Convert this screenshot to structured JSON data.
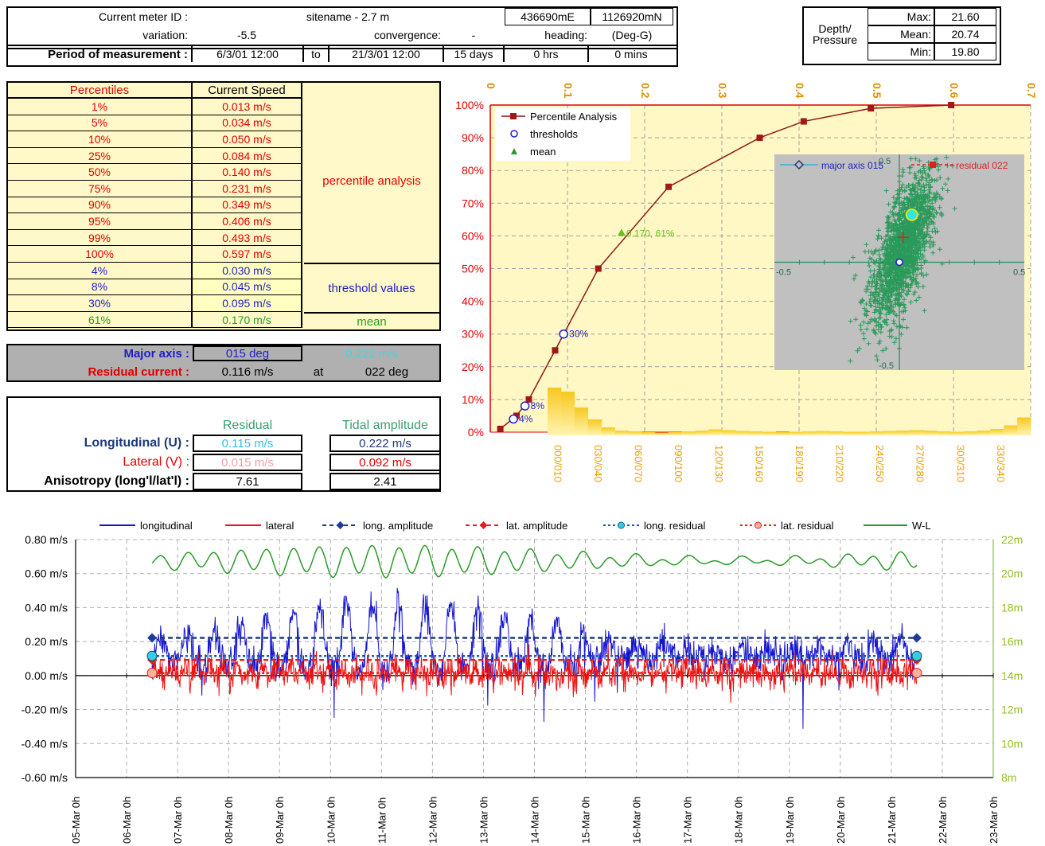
{
  "header": {
    "meter_label": "Current meter ID :",
    "site": "sitename - 2.7 m",
    "easting": "436690mE",
    "northing": "1126920mN",
    "variation_label": "variation:",
    "variation": "-5.5",
    "convergence_label": "convergence:",
    "convergence": "-",
    "heading_label": "heading:",
    "heading": "(Deg-G)",
    "period_label": "Period of measurement :",
    "start": "6/3/01 12:00",
    "to": "to",
    "end": "21/3/01 12:00",
    "days": "15 days",
    "hrs": "0 hrs",
    "mins": "0  mins"
  },
  "depth": {
    "label": "Depth/ Pressure",
    "max_label": "Max:",
    "max": "21.60",
    "mean_label": "Mean:",
    "mean": "20.74",
    "min_label": "Min:",
    "min": "19.80"
  },
  "percentile_table": {
    "col1": "Percentiles",
    "col2": "Current Speed",
    "rows": [
      {
        "p": "1%",
        "v": "0.013 m/s"
      },
      {
        "p": "5%",
        "v": "0.034 m/s"
      },
      {
        "p": "10%",
        "v": "0.050 m/s"
      },
      {
        "p": "25%",
        "v": "0.084 m/s"
      },
      {
        "p": "50%",
        "v": "0.140 m/s"
      },
      {
        "p": "75%",
        "v": "0.231 m/s"
      },
      {
        "p": "90%",
        "v": "0.349 m/s"
      },
      {
        "p": "95%",
        "v": "0.406 m/s"
      },
      {
        "p": "99%",
        "v": "0.493 m/s"
      },
      {
        "p": "100%",
        "v": "0.597 m/s"
      }
    ],
    "percentile_label": "percentile analysis",
    "thresholds": [
      {
        "p": "4%",
        "v": "0.030 m/s"
      },
      {
        "p": "8%",
        "v": "0.045 m/s"
      },
      {
        "p": "30%",
        "v": "0.095 m/s"
      }
    ],
    "threshold_label": "threshold values",
    "mean_row": {
      "p": "61%",
      "v": "0.170 m/s"
    },
    "mean_label": "mean"
  },
  "axis_info": {
    "major_label": "Major axis :",
    "major": "015  deg",
    "major_speed": "0.222 m/s",
    "residual_label": "Residual current :",
    "residual": "0.116 m/s",
    "at": "at",
    "residual_dir": "022 deg"
  },
  "residual_table": {
    "h_residual": "Residual",
    "h_tidal": "Tidal amplitude",
    "long_label": "Longitudinal (U) :",
    "long_res": "0.115 m/s",
    "long_amp": "0.222 m/s",
    "lat_label": "Lateral (V) :",
    "lat_res": "0.015 m/s",
    "lat_amp": "0.092 m/s",
    "aniso_label": "Anisotropy (long'l/lat'l) :",
    "aniso_res": "7.61",
    "aniso_amp": "2.41"
  },
  "chart_data": [
    {
      "type": "line",
      "name": "percentile-chart",
      "x_ticks": [
        "0",
        "0.1",
        "0.2",
        "0.3",
        "0.4",
        "0.5",
        "0.6",
        "0.7"
      ],
      "y_ticks": [
        "0%",
        "10%",
        "20%",
        "30%",
        "40%",
        "50%",
        "60%",
        "70%",
        "80%",
        "90%",
        "100%"
      ],
      "xlim": [
        0,
        0.7
      ],
      "ylim": [
        0,
        100
      ],
      "legend": [
        "Percentile Analysis",
        "thresholds",
        "mean"
      ],
      "series": [
        {
          "name": "Percentile Analysis",
          "x": [
            0.013,
            0.034,
            0.05,
            0.084,
            0.14,
            0.231,
            0.349,
            0.406,
            0.493,
            0.597
          ],
          "y": [
            1,
            5,
            10,
            25,
            50,
            75,
            90,
            95,
            99,
            100
          ]
        },
        {
          "name": "thresholds",
          "x": [
            0.03,
            0.045,
            0.095
          ],
          "y": [
            4,
            8,
            30
          ],
          "labels": [
            "4%",
            "8%",
            "30%"
          ]
        },
        {
          "name": "mean",
          "x": [
            0.17
          ],
          "y": [
            61
          ],
          "labels": [
            "0.170, 61%"
          ]
        }
      ],
      "direction_labels": [
        "000/010",
        "030/040",
        "060/070",
        "090/100",
        "120/130",
        "150/160",
        "180/190",
        "210/220",
        "240/250",
        "270/280",
        "300/310",
        "330/340"
      ],
      "direction_hist": [
        12,
        11,
        7,
        4,
        2,
        1.2,
        1,
        0.8,
        0.7,
        0.8,
        1,
        1.2,
        1.5,
        1.3,
        1.1,
        1,
        0.9,
        0.8,
        0.9,
        1,
        1.1,
        1,
        0.9,
        0.9,
        1,
        1.1,
        1.2,
        1.3,
        1.2,
        1,
        0.9,
        1,
        1.2,
        1.6,
        2.5,
        4.5
      ]
    },
    {
      "type": "scatter",
      "name": "scatter-inset",
      "xlim": [
        -0.5,
        0.5
      ],
      "ylim": [
        -0.5,
        0.5
      ],
      "x_ticks": [
        "-0.5",
        "0.5"
      ],
      "y_ticks": [
        "0.5",
        "-0.5"
      ],
      "legend": [
        "major axis 015",
        "residual 022"
      ],
      "center": [
        0.015,
        0.116
      ],
      "mean_point": [
        0.05,
        0.22
      ],
      "threshold_point": [
        0,
        0
      ]
    },
    {
      "type": "line",
      "name": "timeseries-chart",
      "legend": [
        "longitudinal",
        "lateral",
        "long. amplitude",
        "lat. amplitude",
        "long. residual",
        "lat. residual",
        "W-L"
      ],
      "y_ticks": [
        "0.80 m/s",
        "0.60 m/s",
        "0.40 m/s",
        "0.20 m/s",
        "0.00 m/s",
        "-0.20 m/s",
        "-0.40 m/s",
        "-0.60 m/s"
      ],
      "y2_ticks": [
        "22m",
        "20m",
        "18m",
        "16m",
        "14m",
        "12m",
        "10m",
        "8m"
      ],
      "ylim": [
        -0.6,
        0.8
      ],
      "y2lim": [
        8,
        22
      ],
      "x_ticks": [
        "05-Mar 0h",
        "06-Mar 0h",
        "07-Mar 0h",
        "08-Mar 0h",
        "09-Mar 0h",
        "10-Mar 0h",
        "11-Mar 0h",
        "12-Mar 0h",
        "13-Mar 0h",
        "14-Mar 0h",
        "15-Mar 0h",
        "16-Mar 0h",
        "17-Mar 0h",
        "18-Mar 0h",
        "19-Mar 0h",
        "20-Mar 0h",
        "21-Mar 0h",
        "22-Mar 0h",
        "23-Mar 0h"
      ],
      "long_amplitude": 0.222,
      "lat_amplitude": 0.092,
      "long_residual": 0.115,
      "lat_residual": 0.015,
      "start_day": 1.5,
      "end_day": 16.5,
      "wl_mean": 20.74,
      "wl_range": [
        19.8,
        21.6
      ]
    }
  ]
}
